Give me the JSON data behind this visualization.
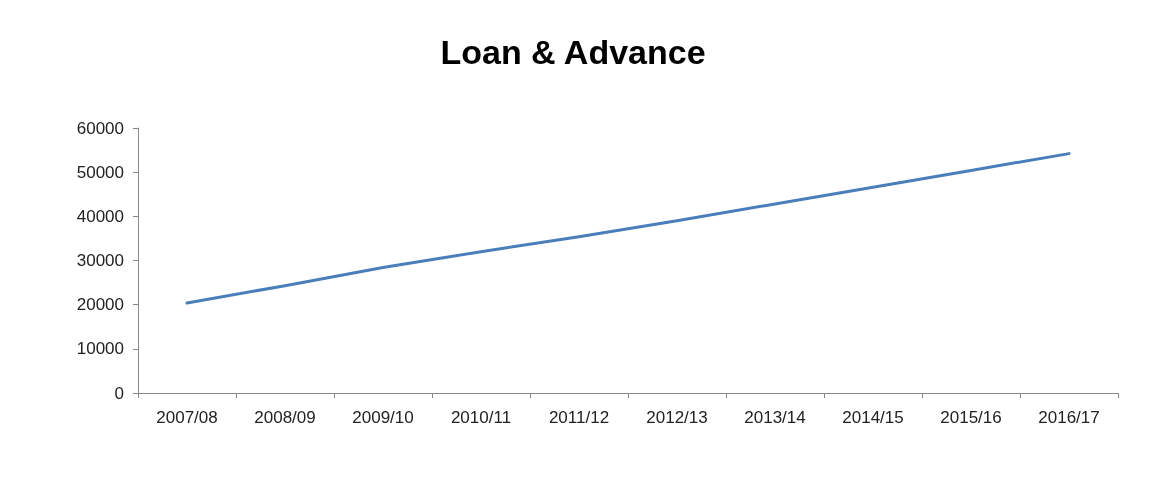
{
  "chart_data": {
    "type": "line",
    "title": "Loan & Advance",
    "categories": [
      "2007/08",
      "2008/09",
      "2009/10",
      "2010/11",
      "2011/12",
      "2012/13",
      "2013/14",
      "2014/15",
      "2015/16",
      "2016/17"
    ],
    "series": [
      {
        "color": "#4a7ebb",
        "values": [
          20400,
          24300,
          28400,
          32000,
          35400,
          39000,
          42800,
          46600,
          50400,
          54200
        ]
      }
    ],
    "ylim": [
      0,
      60000
    ],
    "yticks": [
      0,
      10000,
      20000,
      30000,
      40000,
      50000,
      60000
    ],
    "grid": false,
    "marker": "none",
    "line_style": "solid"
  }
}
